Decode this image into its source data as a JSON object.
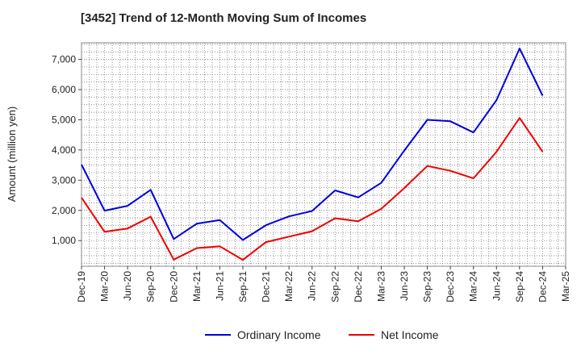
{
  "chart_data": {
    "type": "line",
    "title": "[3452]  Trend of 12-Month Moving Sum of Incomes",
    "xlabel": "",
    "ylabel": "Amount (million yen)",
    "categories": [
      "Dec-19",
      "Mar-20",
      "Jun-20",
      "Sep-20",
      "Dec-20",
      "Mar-21",
      "Jun-21",
      "Sep-21",
      "Dec-21",
      "Mar-22",
      "Jun-22",
      "Sep-22",
      "Dec-22",
      "Mar-23",
      "Jun-23",
      "Sep-23",
      "Dec-23",
      "Mar-24",
      "Jun-24",
      "Sep-24",
      "Dec-24",
      "Mar-25"
    ],
    "yticks": [
      1000,
      2000,
      3000,
      4000,
      5000,
      6000,
      7000
    ],
    "ytick_labels": [
      "1,000",
      "2,000",
      "3,000",
      "4,000",
      "5,000",
      "6,000",
      "7,000"
    ],
    "ylim": [
      150,
      7550
    ],
    "series": [
      {
        "name": "Ordinary Income",
        "color": "#0000dd",
        "values": [
          3520,
          1990,
          2150,
          2680,
          1050,
          1560,
          1680,
          1020,
          1510,
          1800,
          1980,
          2660,
          2430,
          2910,
          3980,
          5000,
          4950,
          4580,
          5650,
          7360,
          5800,
          null
        ]
      },
      {
        "name": "Net Income",
        "color": "#ee0000",
        "values": [
          2420,
          1290,
          1400,
          1790,
          370,
          750,
          810,
          360,
          950,
          1130,
          1310,
          1740,
          1640,
          2050,
          2740,
          3470,
          3310,
          3060,
          3940,
          5060,
          3940,
          null
        ]
      }
    ],
    "grid": true,
    "legend": "bottom-center"
  }
}
